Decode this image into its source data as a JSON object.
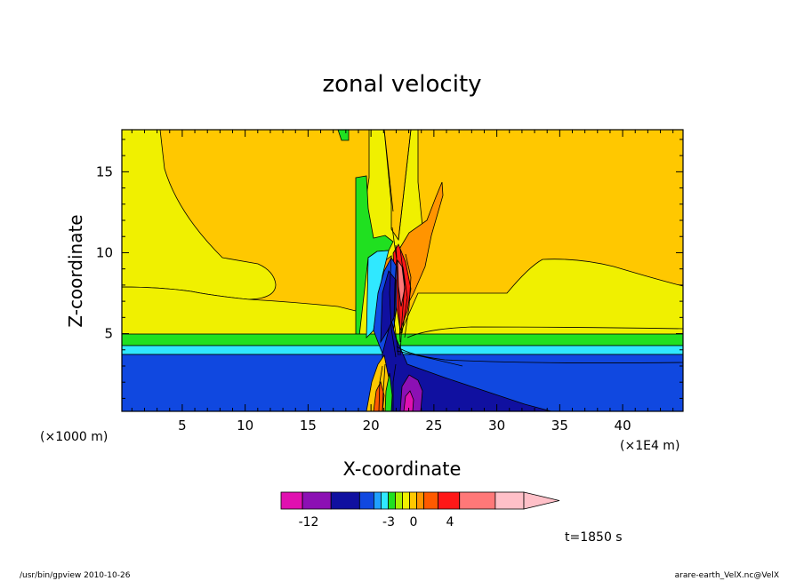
{
  "chart_data": {
    "type": "contour",
    "title": "zonal velocity",
    "xlabel": "X-coordinate",
    "ylabel": "Z-coordinate",
    "x_scale_note": "(×1000 m)",
    "x_unit_note": "(×1E4 m)",
    "x_ticks": [
      5,
      10,
      15,
      20,
      25,
      30,
      35,
      40
    ],
    "y_ticks": [
      5,
      10,
      15
    ],
    "xlim": [
      0.2,
      44.8
    ],
    "ylim": [
      0.2,
      17.6
    ],
    "colorbar": {
      "labels": [
        "-12",
        "-3",
        "0",
        "4"
      ],
      "label_values": [
        -12,
        -3,
        0,
        4
      ],
      "colors": [
        "#e010b0",
        "#8c10b4",
        "#1010a0",
        "#1048e0",
        "#20a0ff",
        "#30e8ff",
        "#20e020",
        "#a8f000",
        "#f0f000",
        "#ffc800",
        "#ff9400",
        "#ff5a00",
        "#ff1818",
        "#ff7878",
        "#ffc0c8"
      ],
      "segment_widths": [
        3,
        4,
        4,
        2,
        1,
        1,
        1,
        1,
        1,
        1,
        1,
        2,
        3,
        5,
        4
      ]
    },
    "time_label": "t=1850 s",
    "footer_left": "/usr/bin/gpview  2010-10-26",
    "footer_right": "arare-earth_VelX.nc@VelX"
  }
}
